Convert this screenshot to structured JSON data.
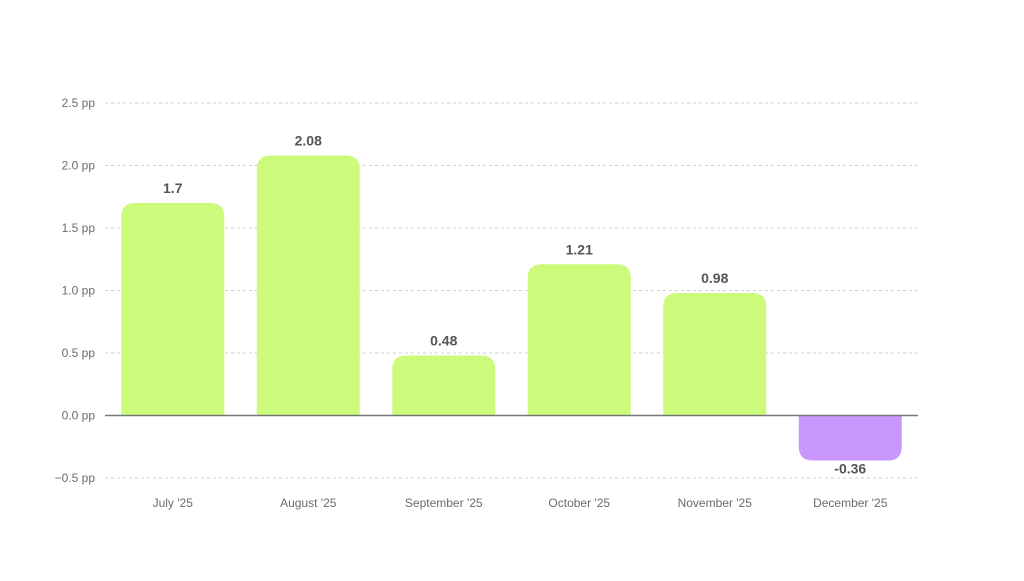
{
  "chart_data": {
    "type": "bar",
    "title": "",
    "xlabel": "",
    "ylabel": "",
    "unit_suffix": " pp",
    "categories": [
      "July '25",
      "August '25",
      "September '25",
      "October '25",
      "November '25",
      "December '25"
    ],
    "values": [
      1.7,
      2.08,
      0.48,
      1.21,
      0.98,
      -0.36
    ],
    "value_labels": [
      "1.7",
      "2.08",
      "0.48",
      "1.21",
      "0.98",
      "-0.36"
    ],
    "yticks": [
      -0.5,
      0.0,
      0.5,
      1.0,
      1.5,
      2.0,
      2.5
    ],
    "ytick_labels": [
      "−0.5 pp",
      "0.0 pp",
      "0.5 pp",
      "1.0 pp",
      "1.5 pp",
      "2.0 pp",
      "2.5 pp"
    ],
    "ylim": [
      -0.5,
      2.5
    ],
    "grid": true,
    "colors": {
      "positive": "#ccfa7a",
      "negative": "#c896fc",
      "grid": "#cfcfcf",
      "zero_line": "#777777",
      "tick_text": "#6b6b6b",
      "value_text": "#555555"
    }
  }
}
